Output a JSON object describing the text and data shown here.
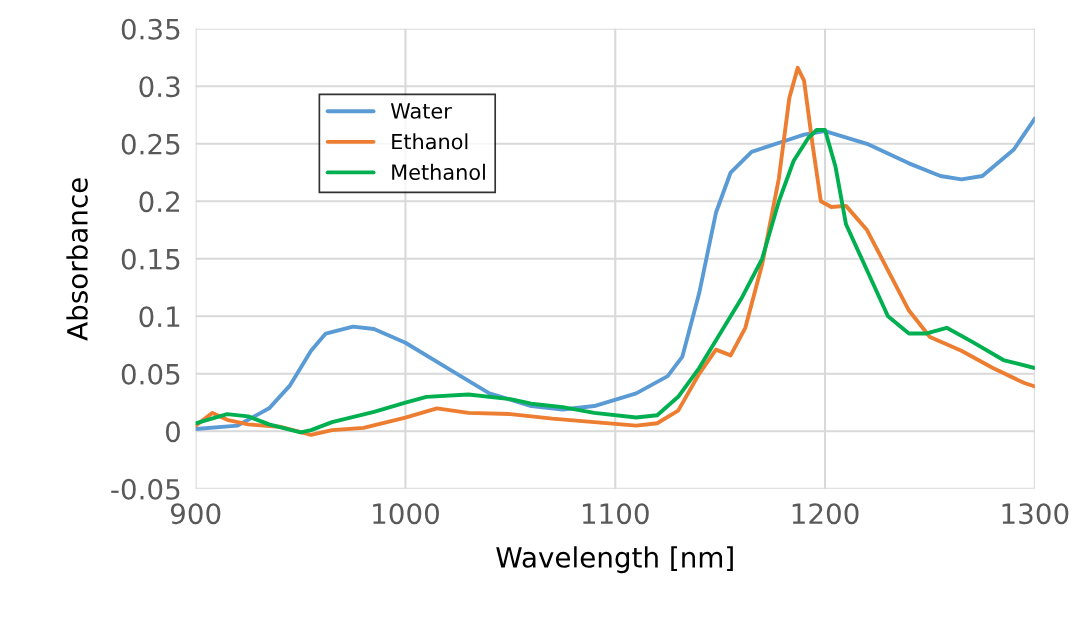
{
  "chart_data": {
    "type": "line",
    "xlabel": "Wavelength [nm]",
    "ylabel": "Absorbance",
    "xlim": [
      900,
      1300
    ],
    "xticks": [
      900,
      1000,
      1100,
      1200,
      1300
    ],
    "ylim": [
      -0.05,
      0.35
    ],
    "yticks": [
      -0.05,
      0,
      0.05,
      0.1,
      0.15,
      0.2,
      0.25,
      0.3,
      0.35
    ],
    "grid": true,
    "legend": "top left",
    "line_style": "solid",
    "marker": "none",
    "series": [
      {
        "name": "Water",
        "color": "#5b9bd5",
        "x": [
          900,
          920,
          935,
          945,
          955,
          962,
          975,
          985,
          1000,
          1020,
          1040,
          1060,
          1075,
          1090,
          1110,
          1125,
          1132,
          1140,
          1148,
          1155,
          1165,
          1180,
          1190,
          1200,
          1220,
          1240,
          1255,
          1265,
          1275,
          1290,
          1300
        ],
        "values": [
          0.002,
          0.005,
          0.02,
          0.04,
          0.07,
          0.085,
          0.091,
          0.089,
          0.077,
          0.055,
          0.033,
          0.022,
          0.019,
          0.022,
          0.033,
          0.048,
          0.065,
          0.12,
          0.19,
          0.225,
          0.243,
          0.252,
          0.258,
          0.261,
          0.25,
          0.233,
          0.222,
          0.219,
          0.222,
          0.245,
          0.272
        ]
      },
      {
        "name": "Ethanol",
        "color": "#ed7d31",
        "x": [
          900,
          908,
          915,
          925,
          940,
          955,
          965,
          980,
          1000,
          1015,
          1030,
          1050,
          1070,
          1090,
          1110,
          1120,
          1130,
          1140,
          1148,
          1155,
          1162,
          1170,
          1178,
          1183,
          1187,
          1190,
          1194,
          1198,
          1203,
          1210,
          1220,
          1230,
          1240,
          1250,
          1265,
          1280,
          1295,
          1300
        ],
        "values": [
          0.005,
          0.016,
          0.01,
          0.006,
          0.004,
          -0.003,
          0.001,
          0.003,
          0.012,
          0.02,
          0.016,
          0.015,
          0.011,
          0.008,
          0.005,
          0.007,
          0.018,
          0.05,
          0.071,
          0.066,
          0.09,
          0.145,
          0.22,
          0.29,
          0.316,
          0.305,
          0.25,
          0.2,
          0.195,
          0.196,
          0.175,
          0.14,
          0.105,
          0.082,
          0.07,
          0.055,
          0.042,
          0.039
        ]
      },
      {
        "name": "Methanol",
        "color": "#00b050",
        "x": [
          900,
          915,
          925,
          935,
          950,
          955,
          965,
          985,
          1000,
          1010,
          1030,
          1050,
          1060,
          1075,
          1090,
          1110,
          1120,
          1130,
          1140,
          1150,
          1160,
          1170,
          1178,
          1185,
          1192,
          1196,
          1200,
          1205,
          1210,
          1220,
          1230,
          1240,
          1248,
          1258,
          1270,
          1285,
          1300
        ],
        "values": [
          0.007,
          0.015,
          0.013,
          0.006,
          -0.001,
          0.001,
          0.008,
          0.017,
          0.025,
          0.03,
          0.032,
          0.028,
          0.024,
          0.021,
          0.016,
          0.012,
          0.014,
          0.03,
          0.055,
          0.085,
          0.115,
          0.15,
          0.2,
          0.235,
          0.255,
          0.262,
          0.262,
          0.23,
          0.18,
          0.14,
          0.1,
          0.085,
          0.085,
          0.09,
          0.078,
          0.062,
          0.055
        ]
      }
    ]
  }
}
